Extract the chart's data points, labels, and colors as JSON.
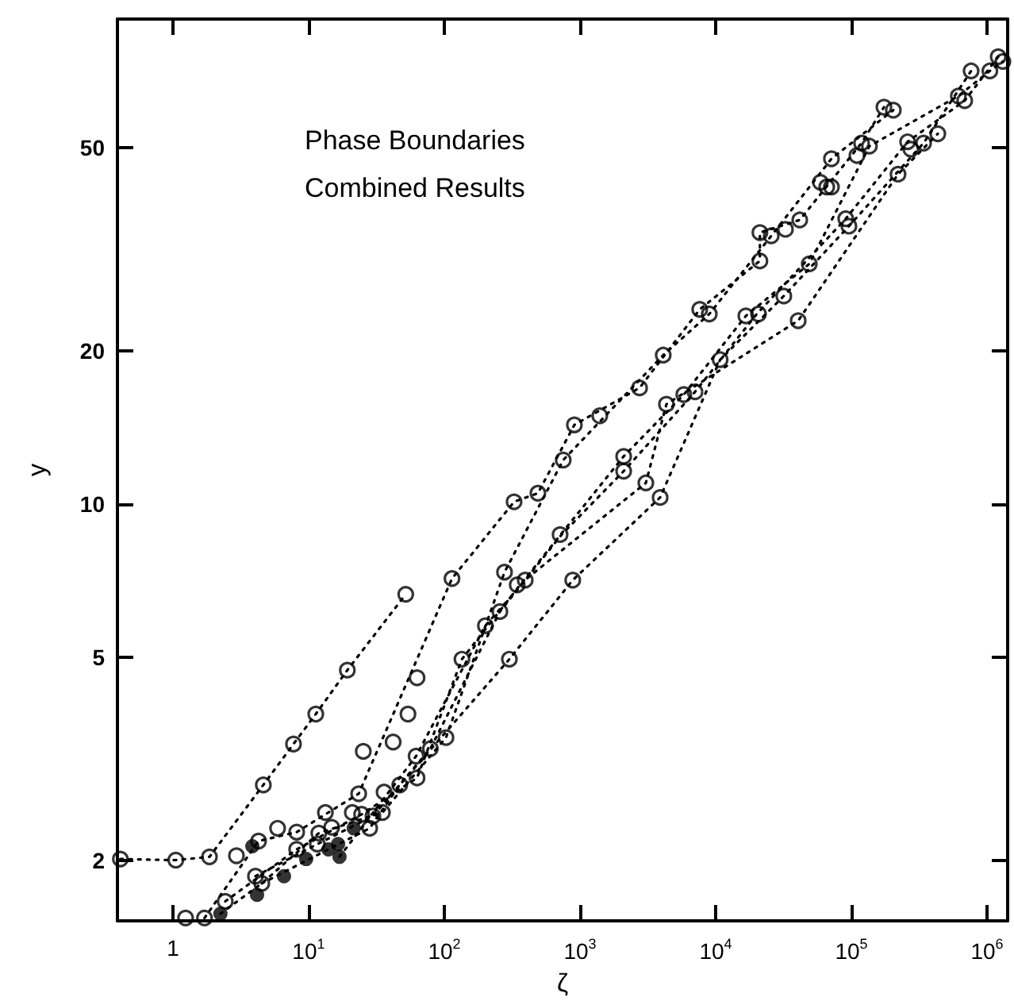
{
  "chart_data": {
    "type": "scatter",
    "xlabel": "ζ",
    "ylabel": "y",
    "log": "xy",
    "grid": false,
    "xlim": [
      0.39,
      1420000
    ],
    "ylim": [
      1.52,
      89.5
    ],
    "xticks": [
      1,
      {
        "value": 10,
        "label": "10$^{1}$"
      },
      {
        "value": 100,
        "label": "10$^{2}$"
      },
      {
        "value": 1000,
        "label": "10$^{3}$"
      },
      {
        "value": 10000,
        "label": "10$^{4}$"
      },
      {
        "value": 100000,
        "label": "10$^{5}$"
      },
      {
        "value": 1000000,
        "label": "10$^{6}$"
      }
    ],
    "yticks": [
      2,
      5,
      10,
      20,
      50
    ],
    "annotations": [
      "Phase Boundaries",
      "Combined Results"
    ],
    "series": [
      {
        "type": "line",
        "color": "#000000",
        "marker": "none",
        "line_style": "dotted",
        "x": [
          0.41,
          1.05,
          1.86,
          4.64,
          7.74,
          11.3,
          19.3,
          52
        ],
        "values": [
          2.01,
          2.0,
          2.03,
          2.81,
          3.38,
          3.87,
          4.72,
          6.65
        ]
      },
      {
        "type": "line",
        "color": "#000000",
        "marker": "none",
        "line_style": "dotted",
        "x": [
          1.71,
          4.28,
          8.17,
          23.4,
          114,
          327,
          490,
          910,
          2750,
          7640,
          21200,
          21200,
          41700,
          119000,
          174000
        ],
        "values": [
          1.54,
          2.18,
          2.27,
          2.7,
          7.14,
          10.1,
          10.5,
          14.3,
          16.9,
          24.1,
          30.0,
          34.1,
          36.1,
          51.1,
          60.1
        ]
      },
      {
        "type": "line",
        "color": "#000000",
        "marker": "none",
        "line_style": "dotted",
        "x": [
          2.24,
          4.52,
          11.9,
          35,
          103,
          278,
          753,
          4110,
          8980,
          25700,
          71400,
          204000
        ],
        "values": [
          1.57,
          1.8,
          2.26,
          2.48,
          3.48,
          7.35,
          12.2,
          19.6,
          23.6,
          33.6,
          47.6,
          59.3
        ]
      },
      {
        "type": "line",
        "color": "#000000",
        "marker": "none",
        "line_style": "dotted",
        "x": [
          2.43,
          8.17,
          24.6,
          63,
          135,
          355,
          2100,
          5830,
          16700,
          49000,
          136000,
          615000,
          1050000,
          1310000
        ],
        "values": [
          1.66,
          2.1,
          2.46,
          2.9,
          4.96,
          6.89,
          12.4,
          16.4,
          23.4,
          29.6,
          50.4,
          63.2,
          70.8,
          73.9
        ]
      },
      {
        "type": "line",
        "color": "#000000",
        "marker": "none",
        "line_style": "dotted",
        "x": [
          4.06,
          11.6,
          29.8,
          79,
          257,
          733,
          2100,
          7050,
          20100,
          91000,
          260000,
          685000,
          1210000
        ],
        "values": [
          1.86,
          2.15,
          2.44,
          3.31,
          6.15,
          8.71,
          11.6,
          16.6,
          23.6,
          36.3,
          51.4,
          61.9,
          75.5
        ]
      },
      {
        "type": "line",
        "color": "#000000",
        "marker": "none",
        "line_style": "dotted",
        "x": [
          4.52,
          28.2,
          47,
          302,
          885,
          3900,
          10800,
          31800,
          96000,
          341000,
          764000
        ],
        "values": [
          1.8,
          2.31,
          2.81,
          4.96,
          7.09,
          10.3,
          19.2,
          25.6,
          35.1,
          51.1,
          70.8
        ]
      },
      {
        "type": "line",
        "color": "#000000",
        "marker": "none",
        "line_style": "dotted",
        "x": [
          16.9,
          62,
          201,
          406,
          3060,
          4340,
          40600,
          221000,
          434000
        ],
        "values": [
          2.03,
          3.2,
          5.77,
          7.14,
          11.0,
          15.7,
          22.9,
          44.4,
          53.3
        ]
      },
      {
        "color": "#000000",
        "x": [
          0.41,
          1.05,
          1.86,
          2.94,
          4.28,
          5.91,
          8.17,
          4.64,
          7.74,
          11.3,
          19.3,
          52,
          1.24,
          1.71,
          2.43,
          4.06,
          4.52,
          8.17,
          11.9,
          11.6,
          14.8,
          13.3,
          21.0,
          23.4,
          24.6,
          29.8,
          28.2,
          35,
          36,
          47,
          63,
          62,
          79,
          103,
          42,
          54,
          63,
          25.3,
          135,
          302,
          257,
          201,
          345,
          395,
          278,
          114,
          327,
          490,
          714,
          885,
          753,
          910,
          1400,
          2750,
          4110,
          4340,
          2100,
          2100,
          3060,
          3900,
          5830,
          7050,
          10800,
          7640,
          8980,
          16700,
          20700,
          21200,
          31800,
          21200,
          25700,
          32700,
          41700,
          40600,
          49000,
          91000,
          96000,
          59200,
          65900,
          71400,
          71400,
          110000,
          119000,
          136000,
          174000,
          204000,
          221000,
          260000,
          275000,
          341000,
          434000,
          615000,
          685000,
          764000,
          1050000,
          1210000,
          1310000
        ],
        "values": [
          2.01,
          2.0,
          2.03,
          2.04,
          2.18,
          2.31,
          2.27,
          2.81,
          3.38,
          3.87,
          4.72,
          6.65,
          1.54,
          1.54,
          1.66,
          1.86,
          1.8,
          2.1,
          2.26,
          2.15,
          2.32,
          2.48,
          2.48,
          2.7,
          2.46,
          2.44,
          2.31,
          2.48,
          2.72,
          2.81,
          2.9,
          3.2,
          3.31,
          3.48,
          3.41,
          3.87,
          4.56,
          3.27,
          4.96,
          4.96,
          6.15,
          5.77,
          6.94,
          7.09,
          7.35,
          7.14,
          10.1,
          10.5,
          8.71,
          7.09,
          12.2,
          14.3,
          14.9,
          16.9,
          19.6,
          15.7,
          12.4,
          11.6,
          11.0,
          10.3,
          16.4,
          16.6,
          19.2,
          24.1,
          23.6,
          23.4,
          23.6,
          30.0,
          25.6,
          34.1,
          33.6,
          34.6,
          36.1,
          22.9,
          29.6,
          36.3,
          35.1,
          42.8,
          41.9,
          41.9,
          47.6,
          48.3,
          51.1,
          50.4,
          60.1,
          59.3,
          44.4,
          51.4,
          49.7,
          51.1,
          53.3,
          63.2,
          61.9,
          70.8,
          70.8,
          75.5,
          73.9
        ]
      },
      {
        "color": "#000000",
        "marker": "circle",
        "x": [
          3.85,
          2.24,
          4.17,
          6.59,
          9.6,
          14.0,
          16.9,
          21.5,
          16.5
        ],
        "values": [
          2.13,
          1.57,
          1.71,
          1.86,
          2.01,
          2.1,
          2.03,
          2.31,
          2.15
        ]
      }
    ]
  }
}
